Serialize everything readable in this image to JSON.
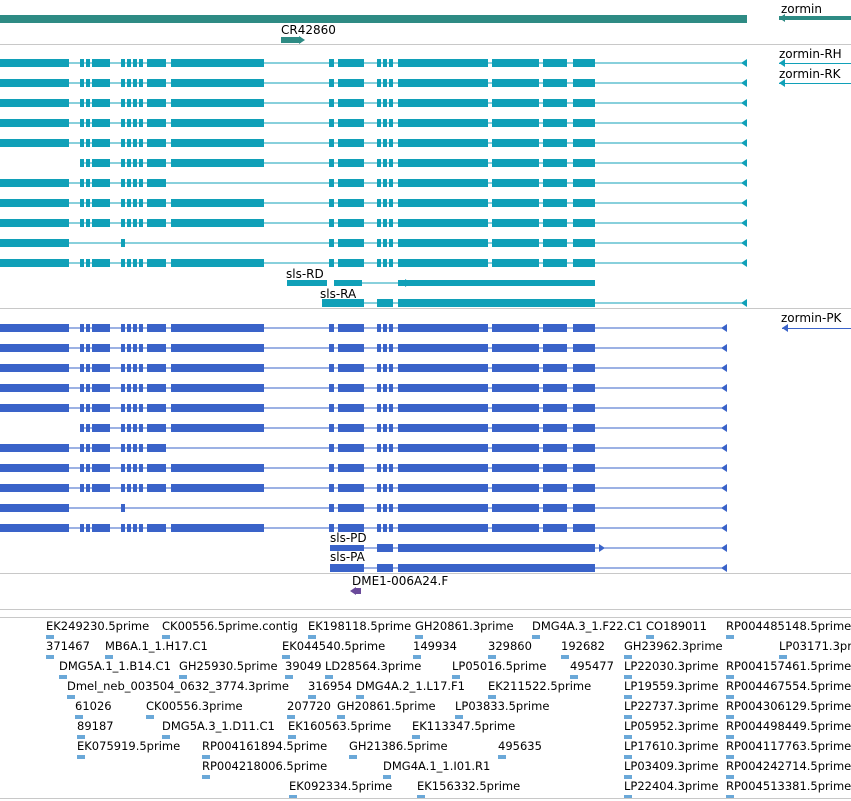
{
  "genome_browser": {
    "tracks": {
      "gene": {
        "name": "zormin",
        "noncoding_label": "CR42860",
        "color": "#2e8b84"
      },
      "transcripts_top": {
        "color": "#10a0b8",
        "labels": [
          "zormin-RH",
          "zormin-RK",
          "sls-RD",
          "sls-RA"
        ]
      },
      "proteins": {
        "color": "#3a63c9",
        "labels": [
          "zormin-PK",
          "sls-PD",
          "sls-PA"
        ]
      },
      "clone": {
        "label": "DME1-006A24.F",
        "color": "#6a4a9a"
      },
      "ests": {
        "color": "#6aa8d8",
        "labels": [
          "EK249230.5prime",
          "CK00556.5prime.contig",
          "EK198118.5prime",
          "GH20861.3prime",
          "DMG4A.3_1.F22.C1",
          "CO189011",
          "RP004485148.5prime",
          "371467",
          "MB6A.1_1.H17.C1",
          "EK044540.5prime",
          "149934",
          "329860",
          "192682",
          "GH23962.3prime",
          "LP03171.3prime",
          "DMG5A.1_1.B14.C1",
          "GH25930.5prime",
          "39049",
          "LD28564.3prime",
          "LP05016.5prime",
          "495477",
          "LP22030.3prime",
          "RP004157461.5prime",
          "Dmel_neb_003504_0632_3774.3prime",
          "316954",
          "DMG4A.2_1.L17.F1",
          "EK211522.5prime",
          "LP19559.3prime",
          "RP004467554.5prime",
          "61026",
          "CK00556.3prime",
          "207720",
          "GH20861.5prime",
          "LP03833.5prime",
          "LP22737.3prime",
          "RP004306129.5prime",
          "89187",
          "DMG5A.3_1.D11.C1",
          "EK160563.5prime",
          "EK113347.5prime",
          "LP05952.3prime",
          "RP004498449.5prime",
          "EK075919.5prime",
          "RP004161894.5prime",
          "GH21386.5prime",
          "495635",
          "LP17610.3prime",
          "RP004117763.5prime",
          "RP004218006.5prime",
          "DMG4A.1_1.I01.R1",
          "LP03409.3prime",
          "RP004242714.5prime",
          "EK092334.5prime",
          "EK156332.5prime",
          "LP22404.3prime",
          "RP004513381.5prime"
        ]
      }
    }
  }
}
